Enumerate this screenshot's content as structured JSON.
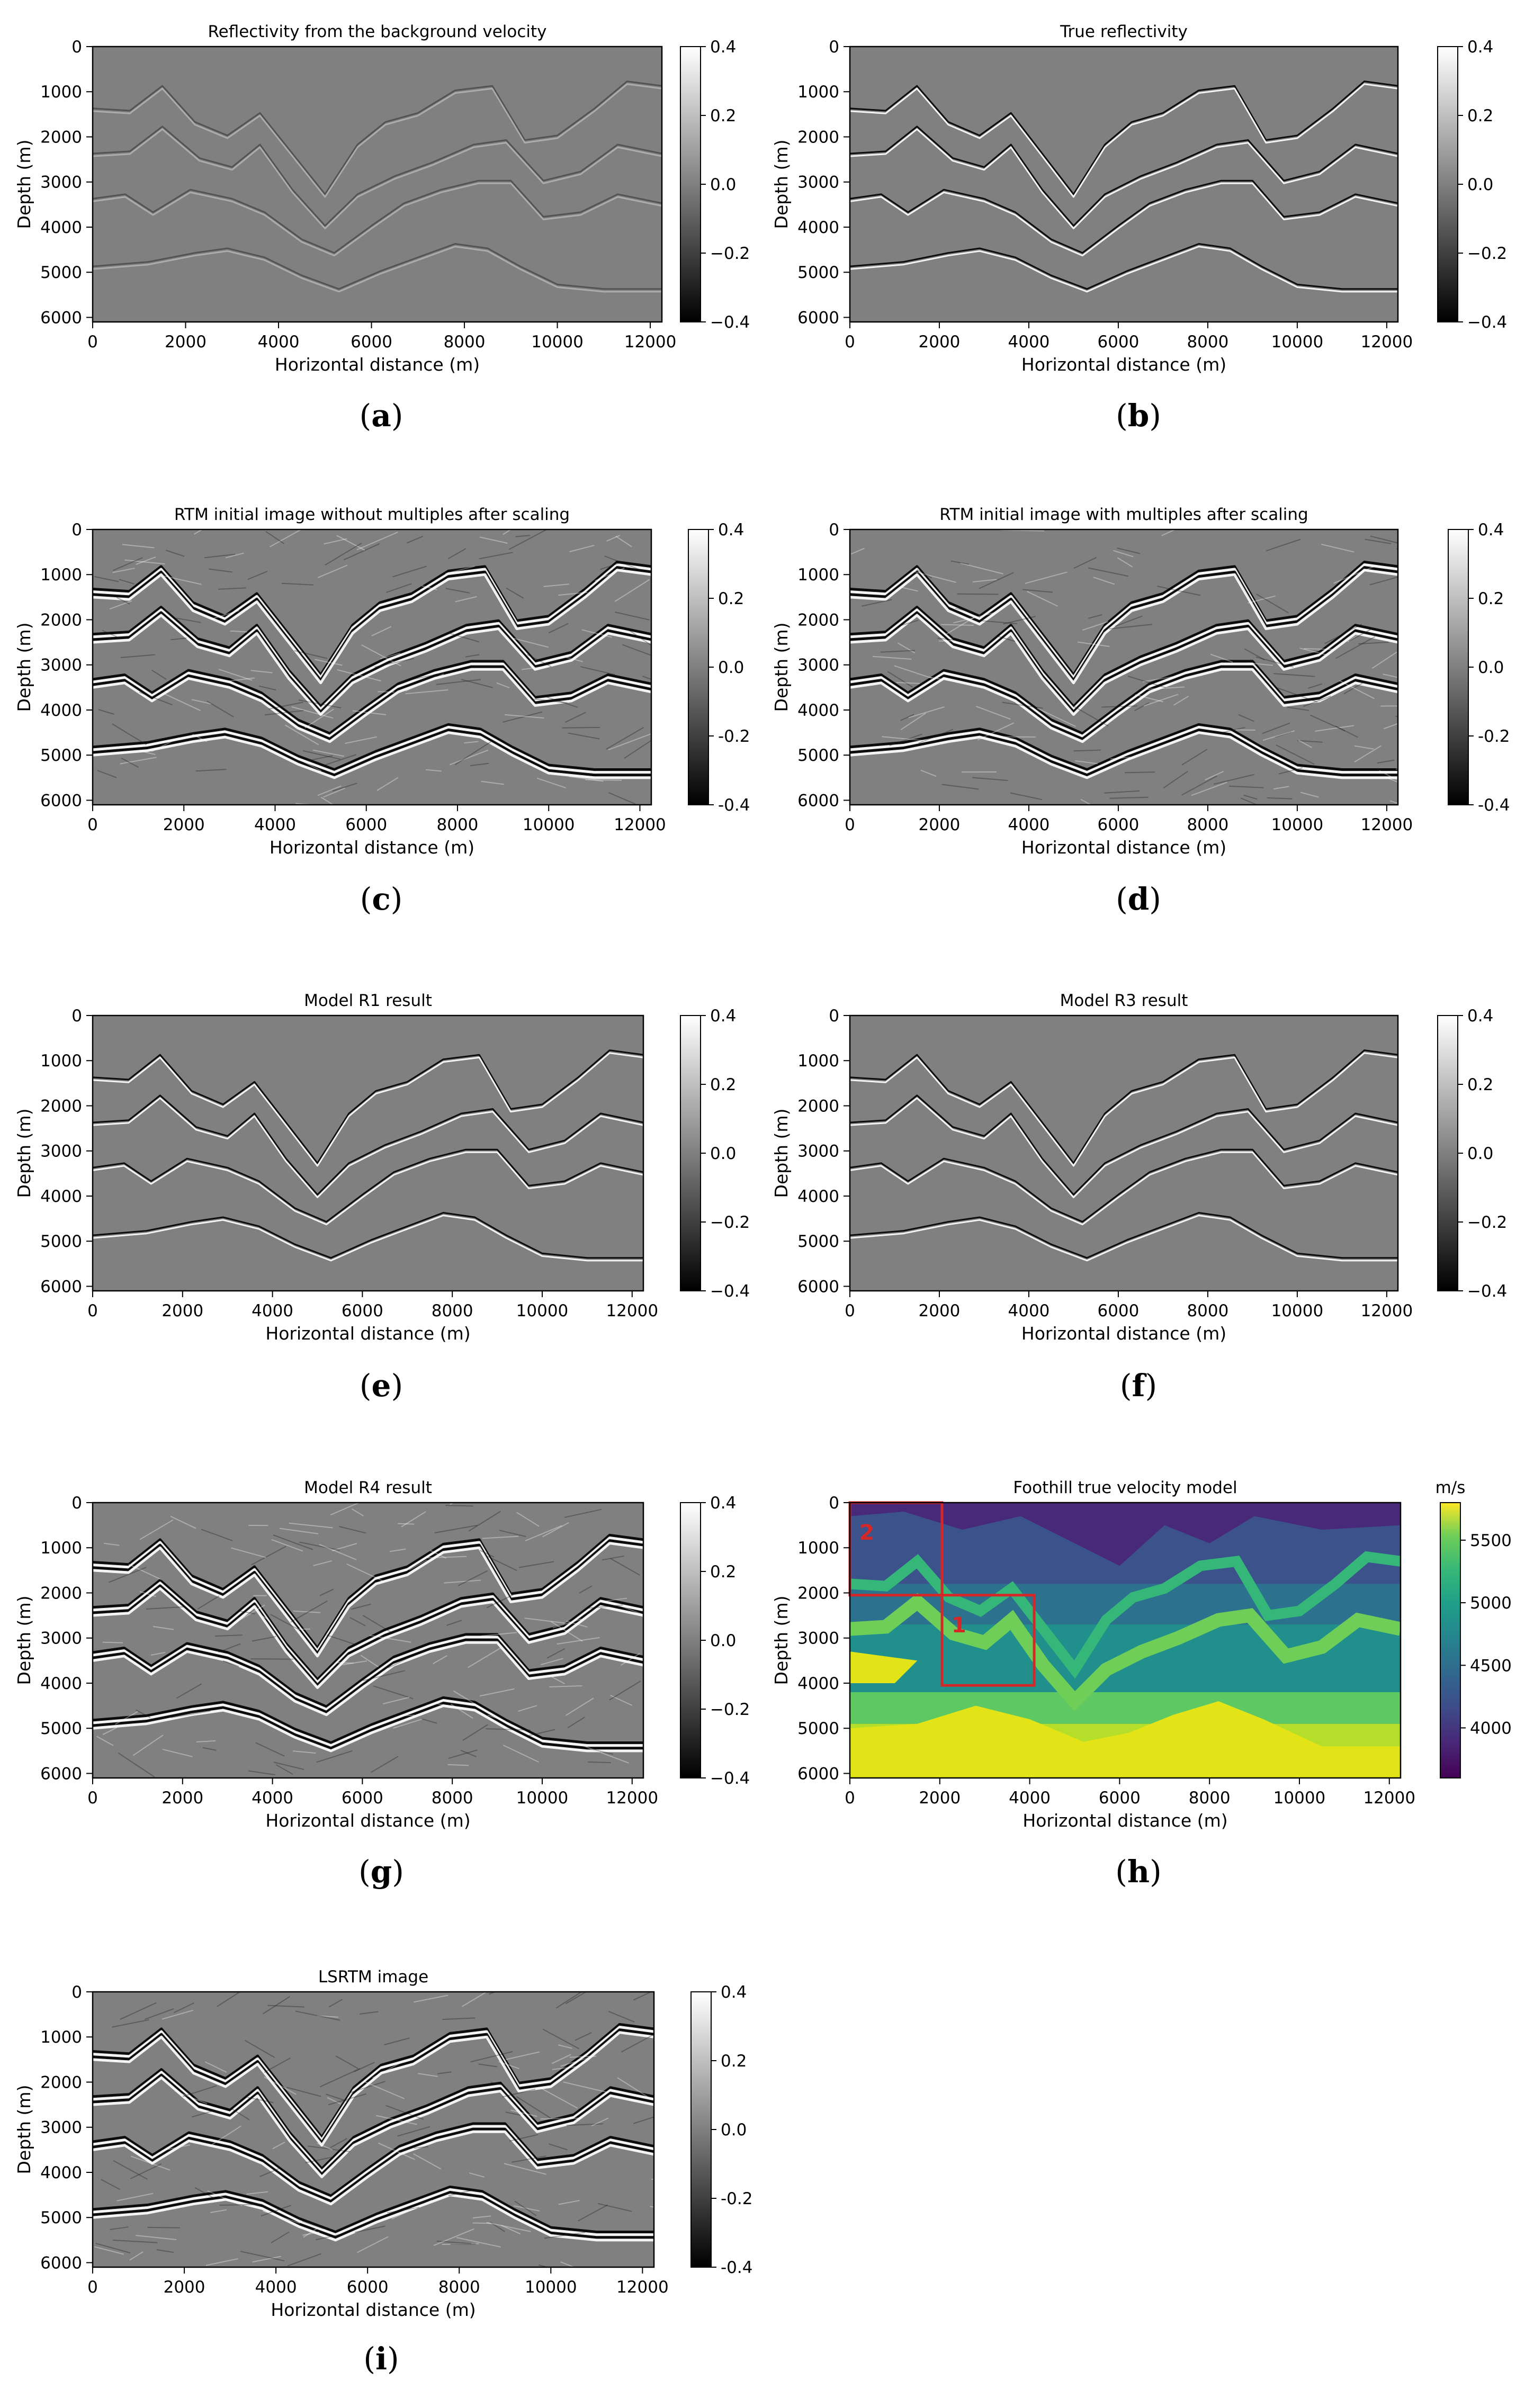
{
  "chart_data": [
    {
      "panel": "a",
      "type": "heatmap",
      "title": "Reflectivity from the background velocity",
      "xlabel": "Horizontal distance (m)",
      "ylabel": "Depth (m)",
      "xlim": [
        0,
        12250
      ],
      "ylim": [
        6100,
        0
      ],
      "xticks": [
        "0",
        "2000",
        "4000",
        "6000",
        "8000",
        "10000",
        "12000"
      ],
      "yticks": [
        "0",
        "1000",
        "2000",
        "3000",
        "4000",
        "5000",
        "6000"
      ],
      "colorbar": {
        "min": -0.4,
        "max": 0.4,
        "ticks": [
          "0.4",
          "0.2",
          "0.0",
          "−0.2",
          "−0.4"
        ],
        "colormap": "gray"
      },
      "caption_letter": "a"
    },
    {
      "panel": "b",
      "type": "heatmap",
      "title": "True reflectivity",
      "xlabel": "Horizontal distance (m)",
      "ylabel": "Depth (m)",
      "xlim": [
        0,
        12250
      ],
      "ylim": [
        6100,
        0
      ],
      "xticks": [
        "0",
        "2000",
        "4000",
        "6000",
        "8000",
        "10000",
        "12000"
      ],
      "yticks": [
        "0",
        "1000",
        "2000",
        "3000",
        "4000",
        "5000",
        "6000"
      ],
      "colorbar": {
        "min": -0.4,
        "max": 0.4,
        "ticks": [
          "0.4",
          "0.2",
          "0.0",
          "−0.2",
          "−0.4"
        ],
        "colormap": "gray"
      },
      "caption_letter": "b"
    },
    {
      "panel": "c",
      "type": "heatmap",
      "title": "RTM initial image without multiples after scaling",
      "xlabel": "Horizontal distance (m)",
      "ylabel": "Depth (m)",
      "xlim": [
        0,
        12250
      ],
      "ylim": [
        6100,
        0
      ],
      "xticks": [
        "0",
        "2000",
        "4000",
        "6000",
        "8000",
        "10000",
        "12000"
      ],
      "yticks": [
        "0",
        "1000",
        "2000",
        "3000",
        "4000",
        "5000",
        "6000"
      ],
      "colorbar": {
        "min": -0.4,
        "max": 0.4,
        "ticks": [
          "0.4",
          "0.2",
          "0.0",
          "-0.2",
          "-0.4"
        ],
        "colormap": "gray"
      },
      "caption_letter": "c"
    },
    {
      "panel": "d",
      "type": "heatmap",
      "title": "RTM initial image with multiples after scaling",
      "xlabel": "Horizontal distance (m)",
      "ylabel": "Depth (m)",
      "xlim": [
        0,
        12250
      ],
      "ylim": [
        6100,
        0
      ],
      "xticks": [
        "0",
        "2000",
        "4000",
        "6000",
        "8000",
        "10000",
        "12000"
      ],
      "yticks": [
        "0",
        "1000",
        "2000",
        "3000",
        "4000",
        "5000",
        "6000"
      ],
      "colorbar": {
        "min": -0.4,
        "max": 0.4,
        "ticks": [
          "0.4",
          "0.2",
          "0.0",
          "-0.2",
          "-0.4"
        ],
        "colormap": "gray"
      },
      "caption_letter": "d"
    },
    {
      "panel": "e",
      "type": "heatmap",
      "title": "Model R1 result",
      "xlabel": "Horizontal distance (m)",
      "ylabel": "Depth (m)",
      "xlim": [
        0,
        12250
      ],
      "ylim": [
        6100,
        0
      ],
      "xticks": [
        "0",
        "2000",
        "4000",
        "6000",
        "8000",
        "10000",
        "12000"
      ],
      "yticks": [
        "0",
        "1000",
        "2000",
        "3000",
        "4000",
        "5000",
        "6000"
      ],
      "colorbar": {
        "min": -0.4,
        "max": 0.4,
        "ticks": [
          "0.4",
          "0.2",
          "0.0",
          "−0.2",
          "−0.4"
        ],
        "colormap": "gray"
      },
      "caption_letter": "e"
    },
    {
      "panel": "f",
      "type": "heatmap",
      "title": "Model R3 result",
      "xlabel": "Horizontal distance (m)",
      "ylabel": "Depth (m)",
      "xlim": [
        0,
        12250
      ],
      "ylim": [
        6100,
        0
      ],
      "xticks": [
        "0",
        "2000",
        "4000",
        "6000",
        "8000",
        "10000",
        "12000"
      ],
      "yticks": [
        "0",
        "1000",
        "2000",
        "3000",
        "4000",
        "5000",
        "6000"
      ],
      "colorbar": {
        "min": -0.4,
        "max": 0.4,
        "ticks": [
          "0.4",
          "0.2",
          "0.0",
          "−0.2",
          "−0.4"
        ],
        "colormap": "gray"
      },
      "caption_letter": "f"
    },
    {
      "panel": "g",
      "type": "heatmap",
      "title": "Model R4 result",
      "xlabel": "Horizontal distance (m)",
      "ylabel": "Depth (m)",
      "xlim": [
        0,
        12250
      ],
      "ylim": [
        6100,
        0
      ],
      "xticks": [
        "0",
        "2000",
        "4000",
        "6000",
        "8000",
        "10000",
        "12000"
      ],
      "yticks": [
        "0",
        "1000",
        "2000",
        "3000",
        "4000",
        "5000",
        "6000"
      ],
      "colorbar": {
        "min": -0.4,
        "max": 0.4,
        "ticks": [
          "0.4",
          "0.2",
          "0.0",
          "−0.2",
          "−0.4"
        ],
        "colormap": "gray"
      },
      "caption_letter": "g"
    },
    {
      "panel": "h",
      "type": "heatmap",
      "title": "Foothill true velocity model",
      "xlabel": "Horizontal distance (m)",
      "ylabel": "Depth (m)",
      "xlim": [
        0,
        12250
      ],
      "ylim": [
        6100,
        0
      ],
      "xticks": [
        "0",
        "2000",
        "4000",
        "6000",
        "8000",
        "10000",
        "12000"
      ],
      "yticks": [
        "0",
        "1000",
        "2000",
        "3000",
        "4000",
        "5000",
        "6000"
      ],
      "colorbar": {
        "min": 3600,
        "max": 5800,
        "ticks": [
          "5500",
          "5000",
          "4500",
          "4000"
        ],
        "unit": "m/s",
        "colormap": "viridis"
      },
      "annotations": [
        {
          "label": "2",
          "box": {
            "x0": 0,
            "x1": 2050,
            "y0": 0,
            "y1": 2050
          },
          "color": "#d62728"
        },
        {
          "label": "1",
          "box": {
            "x0": 2050,
            "x1": 4100,
            "y0": 2050,
            "y1": 4050
          },
          "color": "#d62728"
        }
      ],
      "caption_letter": "h"
    },
    {
      "panel": "i",
      "type": "heatmap",
      "title": "LSRTM image",
      "xlabel": "Horizontal distance (m)",
      "ylabel": "Depth (m)",
      "xlim": [
        0,
        12250
      ],
      "ylim": [
        6100,
        0
      ],
      "xticks": [
        "0",
        "2000",
        "4000",
        "6000",
        "8000",
        "10000",
        "12000"
      ],
      "yticks": [
        "0",
        "1000",
        "2000",
        "3000",
        "4000",
        "5000",
        "6000"
      ],
      "colorbar": {
        "min": -0.4,
        "max": 0.4,
        "ticks": [
          "0.4",
          "0.2",
          "0.0",
          "-0.2",
          "-0.4"
        ],
        "colormap": "gray"
      },
      "caption_letter": "i"
    }
  ]
}
